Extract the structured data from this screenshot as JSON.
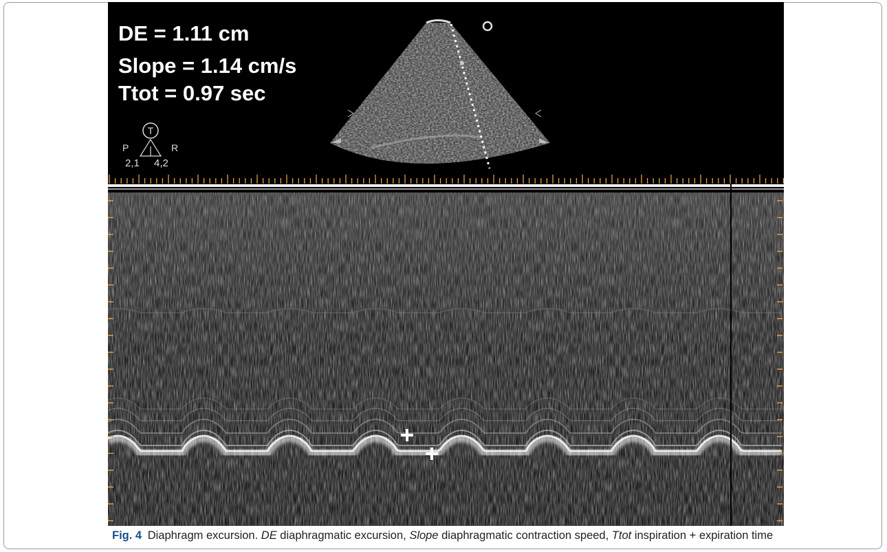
{
  "figure": {
    "measurements": [
      "DE = 1.11 cm",
      "Slope = 1.14 cm/s",
      "Ttot = 0.97 sec"
    ],
    "probe": {
      "mode": "T",
      "left": "P",
      "right": "R",
      "left_value": "2,1",
      "right_value": "4,2"
    },
    "caption": {
      "label": "Fig. 4",
      "title": "Diaphragm excursion.",
      "terms": [
        {
          "term": "DE",
          "definition": "diaphragmatic excursion,"
        },
        {
          "term": "Slope",
          "definition": "diaphragmatic contraction speed,"
        },
        {
          "term": "Ttot",
          "definition": "inspiration + expiration time"
        }
      ]
    }
  }
}
